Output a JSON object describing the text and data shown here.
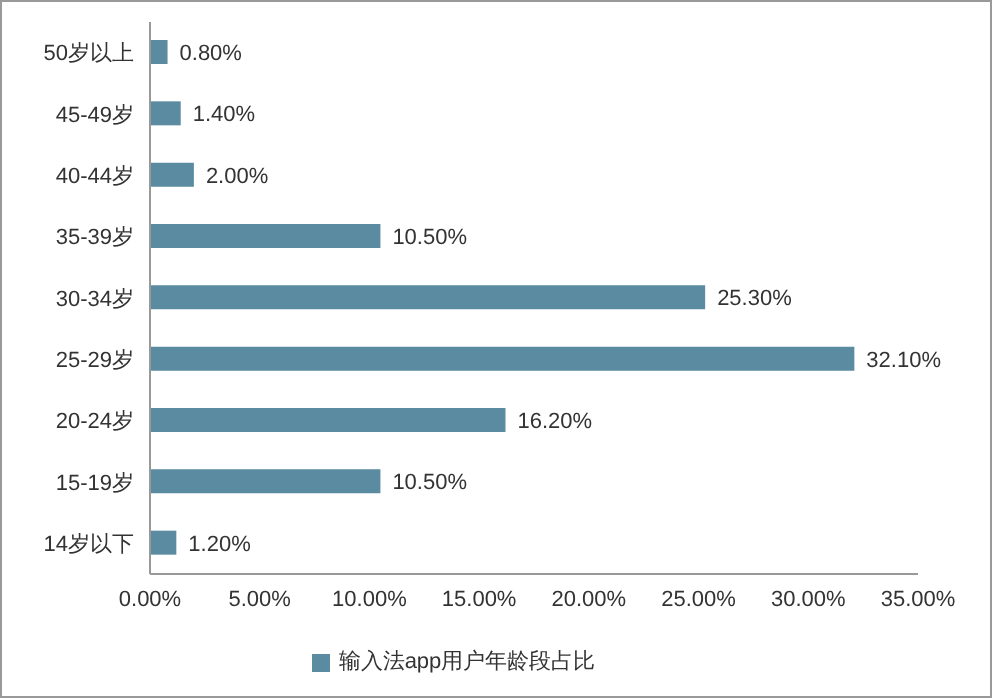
{
  "chart_data": {
    "type": "bar",
    "orientation": "horizontal",
    "categories": [
      "50岁以上",
      "45-49岁",
      "40-44岁",
      "35-39岁",
      "30-34岁",
      "25-29岁",
      "20-24岁",
      "15-19岁",
      "14岁以下"
    ],
    "series": [
      {
        "name": "输入法app用户年龄段占比",
        "color": "#5b8ba0",
        "values": [
          0.8,
          1.4,
          2.0,
          10.5,
          25.3,
          32.1,
          16.2,
          10.5,
          1.2
        ],
        "value_labels": [
          "0.80%",
          "1.40%",
          "2.00%",
          "10.50%",
          "25.30%",
          "32.10%",
          "16.20%",
          "10.50%",
          "1.20%"
        ]
      }
    ],
    "xlim": [
      0,
      35
    ],
    "xticks": [
      {
        "value": 0,
        "label": "0.00%"
      },
      {
        "value": 5,
        "label": "5.00%"
      },
      {
        "value": 10,
        "label": "10.00%"
      },
      {
        "value": 15,
        "label": "15.00%"
      },
      {
        "value": 20,
        "label": "20.00%"
      },
      {
        "value": 25,
        "label": "25.00%"
      },
      {
        "value": 30,
        "label": "30.00%"
      },
      {
        "value": 35,
        "label": "35.00%"
      }
    ],
    "grid": false,
    "legend": "bottom"
  }
}
